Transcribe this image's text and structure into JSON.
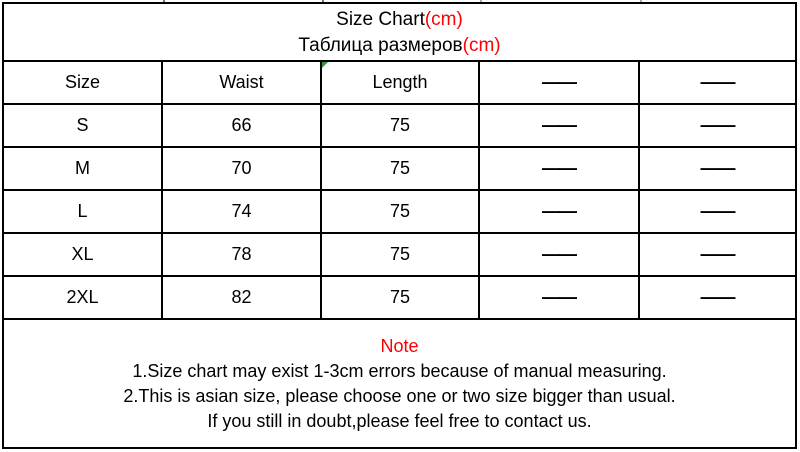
{
  "page": {
    "title": "Size Chart",
    "title_unit": "(cm)",
    "subtitle": "Таблица размеров",
    "subtitle_unit": "(cm)"
  },
  "table": {
    "headers": [
      "Size",
      "Waist",
      "Length",
      "——",
      "——"
    ],
    "rows": [
      [
        "S",
        "66",
        "75",
        "——",
        "——"
      ],
      [
        "M",
        "70",
        "75",
        "——",
        "——"
      ],
      [
        "L",
        "74",
        "75",
        "——",
        "——"
      ],
      [
        "XL",
        "78",
        "75",
        "——",
        "——"
      ],
      [
        "2XL",
        "82",
        "75",
        "——",
        "——"
      ]
    ]
  },
  "note": {
    "heading": "Note",
    "lines": [
      "1.Size chart may exist 1-3cm errors because of manual measuring.",
      "2.This is asian size, please choose one or two size bigger than usual.",
      "If you still in doubt,please feel free to contact us."
    ]
  },
  "colors": {
    "accent_red": "#ff0000",
    "marker_green": "#2e9b3d",
    "border_black": "#000000",
    "background": "#ffffff"
  },
  "chart_data": {
    "type": "table",
    "title": "Size Chart(cm) / Таблица размеров(cm)",
    "columns": [
      "Size",
      "Waist",
      "Length",
      "—",
      "—"
    ],
    "categories": [
      "S",
      "M",
      "L",
      "XL",
      "2XL"
    ],
    "series": [
      {
        "name": "Waist",
        "values": [
          66,
          70,
          74,
          78,
          82
        ]
      },
      {
        "name": "Length",
        "values": [
          75,
          75,
          75,
          75,
          75
        ]
      }
    ],
    "empty_columns": 2,
    "units": "cm",
    "notes": [
      "1.Size chart may exist 1-3cm errors because of manual measuring.",
      "2.This is asian size, please choose one or two size bigger than usual.",
      "If you still in doubt,please feel free to contact us."
    ]
  }
}
